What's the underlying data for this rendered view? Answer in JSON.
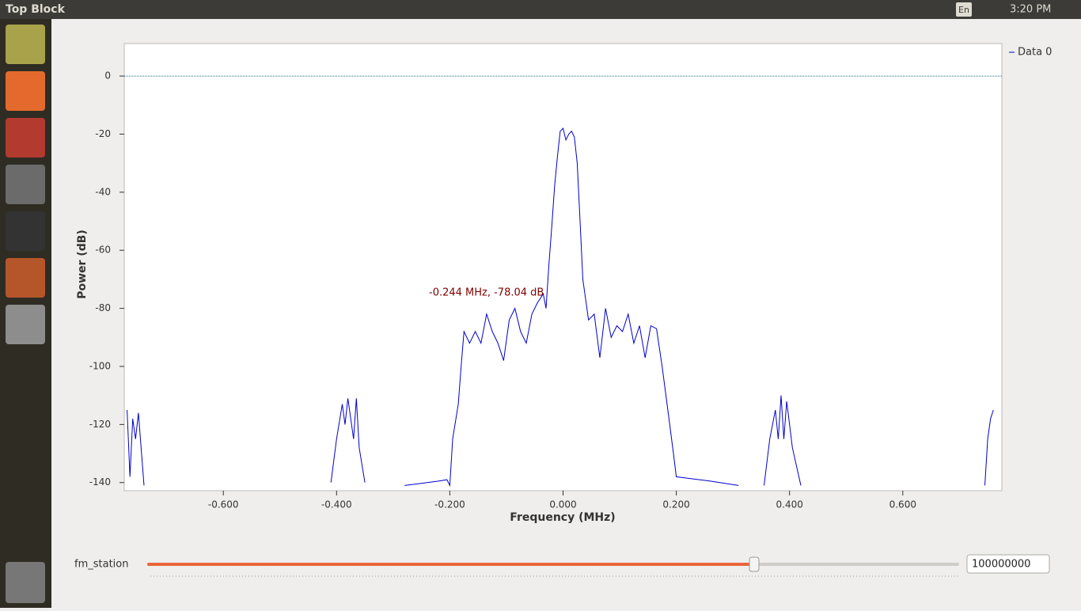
{
  "window": {
    "title": "Top Block",
    "lang": "En",
    "time": "3:20 PM"
  },
  "chart_data": {
    "type": "line",
    "xlabel": "Frequency (MHz)",
    "ylabel": "Power (dB)",
    "annotation": "-0.244 MHz, -78.04 dB",
    "xlim": [
      -0.775,
      0.775
    ],
    "ylim": [
      -142.8,
      11.2
    ],
    "xticks": [
      {
        "value": -0.6,
        "label": "-0.600"
      },
      {
        "value": -0.4,
        "label": "-0.400"
      },
      {
        "value": -0.2,
        "label": "-0.200"
      },
      {
        "value": 0,
        "label": "0.000"
      },
      {
        "value": 0.2,
        "label": "0.200"
      },
      {
        "value": 0.4,
        "label": "0.400"
      },
      {
        "value": 0.6,
        "label": "0.600"
      }
    ],
    "yticks": [
      0,
      -20,
      -40,
      -60,
      -80,
      -100,
      -120,
      -140
    ],
    "legend": "top-right",
    "x": [
      -0.77,
      -0.765,
      -0.76,
      -0.755,
      -0.75,
      -0.74,
      null,
      -0.41,
      -0.4,
      -0.39,
      -0.385,
      -0.38,
      -0.37,
      -0.365,
      -0.36,
      -0.35,
      null,
      -0.28,
      -0.26,
      -0.24,
      -0.22,
      -0.205,
      -0.2,
      -0.195,
      -0.185,
      -0.18,
      -0.175,
      -0.165,
      -0.155,
      -0.145,
      -0.135,
      -0.125,
      -0.115,
      -0.105,
      -0.095,
      -0.085,
      -0.075,
      -0.065,
      -0.055,
      -0.045,
      -0.035,
      -0.03,
      -0.025,
      -0.02,
      -0.015,
      -0.01,
      -0.005,
      0,
      0.005,
      0.01,
      0.015,
      0.02,
      0.025,
      0.03,
      0.035,
      0.045,
      0.055,
      0.065,
      0.075,
      0.085,
      0.095,
      0.105,
      0.115,
      0.125,
      0.135,
      0.145,
      0.155,
      0.165,
      0.175,
      0.185,
      0.195,
      0.2,
      0.22,
      0.26,
      0.31,
      null,
      0.355,
      0.365,
      0.375,
      0.38,
      0.385,
      0.39,
      0.395,
      0.405,
      0.42,
      null,
      0.745,
      0.75,
      0.755,
      0.76
    ],
    "series": [
      {
        "name": "Data 0",
        "color": "#0000cc",
        "values": [
          -115,
          -138,
          -118,
          -125,
          -116,
          -141,
          null,
          -140,
          -125,
          -113,
          -120,
          -111,
          -125,
          -111,
          -128,
          -140,
          null,
          -141,
          -140.5,
          -140,
          -139.5,
          -139,
          -141,
          -125,
          -113,
          -100,
          -88,
          -92,
          -88,
          -92,
          -82,
          -88,
          -92,
          -98,
          -84,
          -80,
          -88,
          -92,
          -82,
          -78,
          -75,
          -80,
          -65,
          -52,
          -38,
          -28,
          -19,
          -18,
          -22,
          -20,
          -19,
          -21,
          -30,
          -50,
          -70,
          -84,
          -82,
          -97,
          -80,
          -90,
          -86,
          -88,
          -82,
          -92,
          -86,
          -97,
          -86,
          -87,
          -100,
          -115,
          -130,
          -138,
          -138.5,
          -139.5,
          -141,
          null,
          -141,
          -125,
          -115,
          -125,
          -110,
          -125,
          -112,
          -128,
          -141,
          null,
          -141,
          -125,
          -118,
          -115
        ]
      }
    ]
  },
  "control": {
    "label": "fm_station",
    "value": 100000000
  }
}
